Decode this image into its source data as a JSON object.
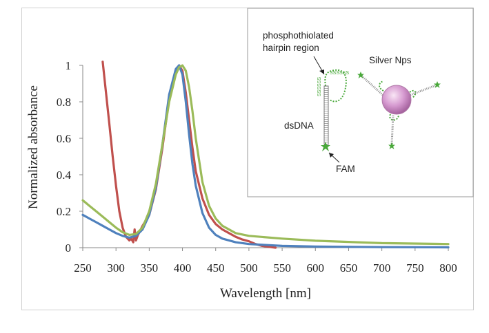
{
  "chart_data": {
    "type": "line",
    "xlabel": "Wavelength [nm]",
    "ylabel": "Normalized absorbance",
    "xlim": [
      250,
      800
    ],
    "ylim": [
      0,
      1
    ],
    "x_ticks": [
      "250",
      "300",
      "350",
      "400",
      "450",
      "500",
      "550",
      "600",
      "650",
      "700",
      "750",
      "800"
    ],
    "y_ticks": [
      "0",
      "0.2",
      "0.4",
      "0.6",
      "0.8",
      "1"
    ],
    "grid": false,
    "series": [
      {
        "color": "#c0504d",
        "x": [
          280,
          285,
          290,
          295,
          300,
          305,
          310,
          315,
          320,
          323,
          326,
          328,
          330,
          333,
          336,
          340,
          350,
          360,
          370,
          380,
          390,
          395,
          400,
          405,
          410,
          415,
          420,
          430,
          440,
          450,
          460,
          470,
          480,
          490,
          500,
          510,
          520,
          530,
          540
        ],
        "y": [
          1.02,
          0.85,
          0.68,
          0.5,
          0.34,
          0.2,
          0.11,
          0.06,
          0.04,
          0.05,
          0.03,
          0.1,
          0.04,
          0.07,
          0.09,
          0.12,
          0.18,
          0.32,
          0.55,
          0.82,
          0.97,
          1.0,
          0.97,
          0.85,
          0.7,
          0.55,
          0.42,
          0.27,
          0.18,
          0.13,
          0.1,
          0.08,
          0.06,
          0.045,
          0.035,
          0.02,
          0.01,
          0.005,
          0.0
        ]
      },
      {
        "color": "#4f81bd",
        "x": [
          250,
          260,
          270,
          280,
          290,
          300,
          310,
          320,
          330,
          340,
          350,
          360,
          370,
          380,
          390,
          395,
          400,
          405,
          410,
          415,
          420,
          430,
          440,
          450,
          460,
          480,
          500,
          550,
          600,
          700,
          800
        ],
        "y": [
          0.18,
          0.16,
          0.14,
          0.12,
          0.1,
          0.08,
          0.065,
          0.055,
          0.065,
          0.1,
          0.18,
          0.33,
          0.57,
          0.84,
          0.98,
          1.0,
          0.95,
          0.8,
          0.62,
          0.46,
          0.34,
          0.19,
          0.11,
          0.07,
          0.05,
          0.03,
          0.02,
          0.01,
          0.006,
          0.003,
          0.002
        ]
      },
      {
        "color": "#9bbb59",
        "x": [
          250,
          260,
          270,
          280,
          290,
          300,
          310,
          320,
          330,
          340,
          350,
          360,
          370,
          380,
          390,
          395,
          400,
          405,
          410,
          415,
          420,
          430,
          440,
          450,
          460,
          480,
          500,
          550,
          600,
          700,
          800
        ],
        "y": [
          0.26,
          0.23,
          0.2,
          0.17,
          0.14,
          0.11,
          0.085,
          0.07,
          0.075,
          0.11,
          0.2,
          0.35,
          0.57,
          0.8,
          0.95,
          0.99,
          1.0,
          0.97,
          0.88,
          0.75,
          0.6,
          0.36,
          0.23,
          0.16,
          0.12,
          0.08,
          0.065,
          0.05,
          0.038,
          0.025,
          0.02
        ]
      }
    ]
  },
  "inset": {
    "hairpin_label_line1": "phosphothiolated",
    "hairpin_label_line2": "hairpin region",
    "silver_label": "Silver Nps",
    "dsdna_label": "dsDNA",
    "fam_label": "FAM",
    "phosphorothioate_marks": "SSSSSS"
  }
}
